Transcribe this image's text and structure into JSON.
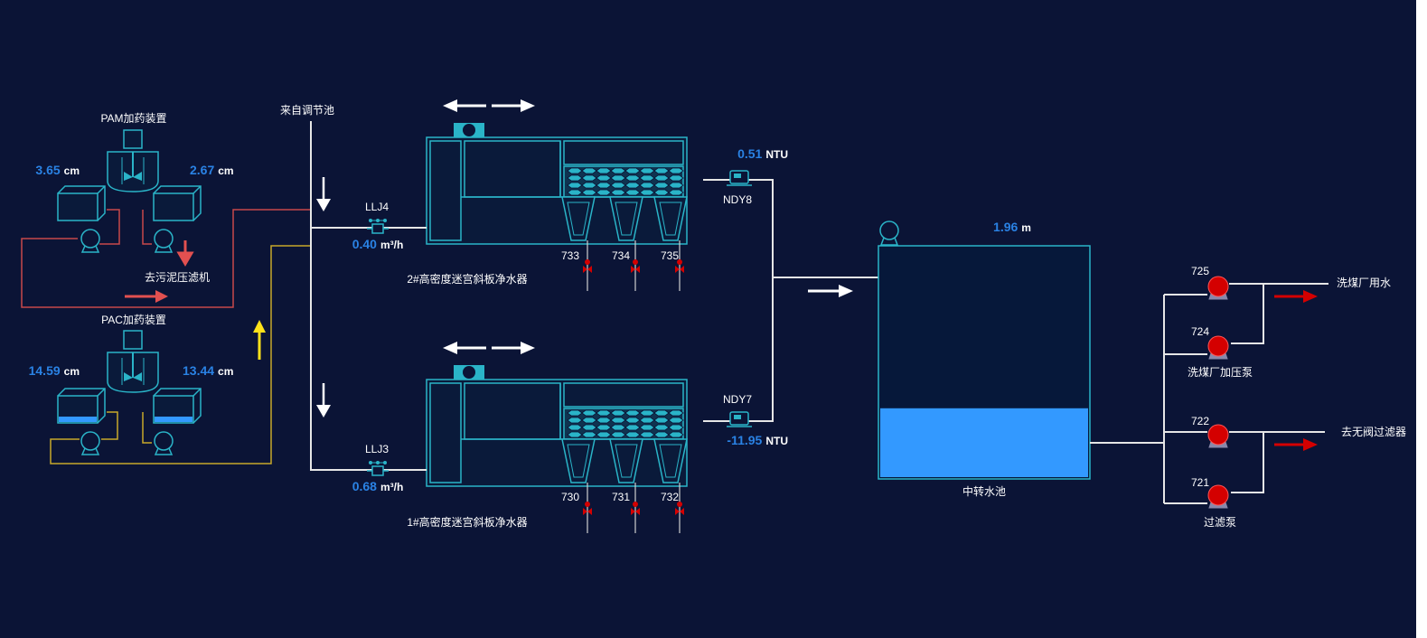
{
  "colors": {
    "background": "#0b1436",
    "equipment_outline": "#2ab4c8",
    "value_text": "#2a82e4",
    "pam_pipe": "#c8484a",
    "pac_pipe": "#c8a82a",
    "pump_red": "#d40000",
    "water_fill": "#3399ff"
  },
  "pam": {
    "title": "PAM加药装置",
    "left_level": "3.65",
    "left_unit": "cm",
    "right_level": "2.67",
    "right_unit": "cm",
    "sludge_label": "去污泥压滤机"
  },
  "pac": {
    "title": "PAC加药装置",
    "left_level": "14.59",
    "left_unit": "cm",
    "right_level": "13.44",
    "right_unit": "cm"
  },
  "inlet_label": "来自调节池",
  "flowmeters": {
    "llj4": {
      "name": "LLJ4",
      "value": "0.40",
      "unit": "m³/h"
    },
    "llj3": {
      "name": "LLJ3",
      "value": "0.68",
      "unit": "m³/h"
    }
  },
  "clarifier2": {
    "name": "2#高密度迷宫斜板净水器",
    "valves": [
      "733",
      "734",
      "735"
    ]
  },
  "clarifier1": {
    "name": "1#高密度迷宫斜板净水器",
    "valves": [
      "730",
      "731",
      "732"
    ]
  },
  "turbidity": {
    "ndy8": {
      "name": "NDY8",
      "value": "0.51",
      "unit": "NTU"
    },
    "ndy7": {
      "name": "NDY7",
      "value": "-11.95",
      "unit": "NTU"
    }
  },
  "tank": {
    "name": "中转水池",
    "level": "1.96",
    "level_unit": "m",
    "fill_fraction": 0.3
  },
  "pumps": {
    "p725": "725",
    "p724": "724",
    "p722": "722",
    "p721": "721",
    "group1_label": "洗煤厂加压泵",
    "group2_label": "过滤泵"
  },
  "outlets": {
    "wash_water": "洗煤厂用水",
    "valveless_filter": "去无阀过滤器"
  }
}
